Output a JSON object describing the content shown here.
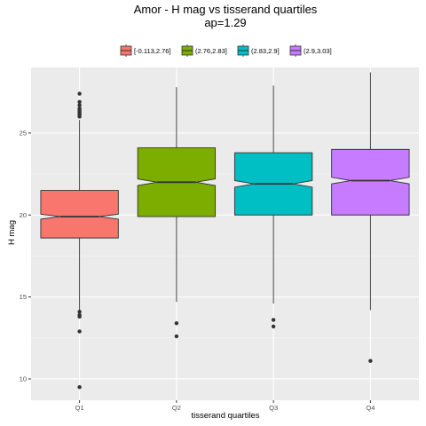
{
  "chart_data": {
    "type": "boxplot",
    "title_line1": "Amor - H mag vs tisserand quartiles",
    "title_line2": "ap=1.29",
    "xlabel": "tisserand quartiles",
    "ylabel": "H mag",
    "categories": [
      "Q1",
      "Q2",
      "Q3",
      "Q4"
    ],
    "y_ticks": [
      10,
      15,
      20,
      25
    ],
    "ylim": [
      8.7,
      29.0
    ],
    "legend_position": "top",
    "legend": [
      {
        "label": "[-0.113,2.76]",
        "color": "#F8766D"
      },
      {
        "label": "(2.76,2.83]",
        "color": "#7CAE00"
      },
      {
        "label": "(2.83,2.9]",
        "color": "#00BFC4"
      },
      {
        "label": "(2.9,3.03]",
        "color": "#C77CFF"
      }
    ],
    "boxes": [
      {
        "category": "Q1",
        "q1": 18.6,
        "median": 19.9,
        "q3": 21.5,
        "whisker_low": 14.2,
        "whisker_high": 25.8,
        "notch_low": 19.75,
        "notch_high": 20.05,
        "outliers": [
          27.4,
          26.9,
          26.7,
          26.5,
          26.4,
          26.3,
          26.2,
          26.1,
          26.0,
          14.1,
          13.9,
          13.8,
          12.9,
          9.5
        ]
      },
      {
        "category": "Q2",
        "q1": 19.9,
        "median": 22.0,
        "q3": 24.1,
        "whisker_low": 14.7,
        "whisker_high": 27.8,
        "notch_low": 21.8,
        "notch_high": 22.2,
        "outliers": [
          13.4,
          12.6
        ]
      },
      {
        "category": "Q3",
        "q1": 20.0,
        "median": 21.9,
        "q3": 23.8,
        "whisker_low": 14.6,
        "whisker_high": 27.9,
        "notch_low": 21.7,
        "notch_high": 22.1,
        "outliers": [
          13.6,
          13.2
        ]
      },
      {
        "category": "Q4",
        "q1": 20.0,
        "median": 22.1,
        "q3": 24.0,
        "whisker_low": 14.2,
        "whisker_high": 28.7,
        "notch_low": 21.9,
        "notch_high": 22.3,
        "outliers": [
          11.1
        ]
      }
    ]
  }
}
